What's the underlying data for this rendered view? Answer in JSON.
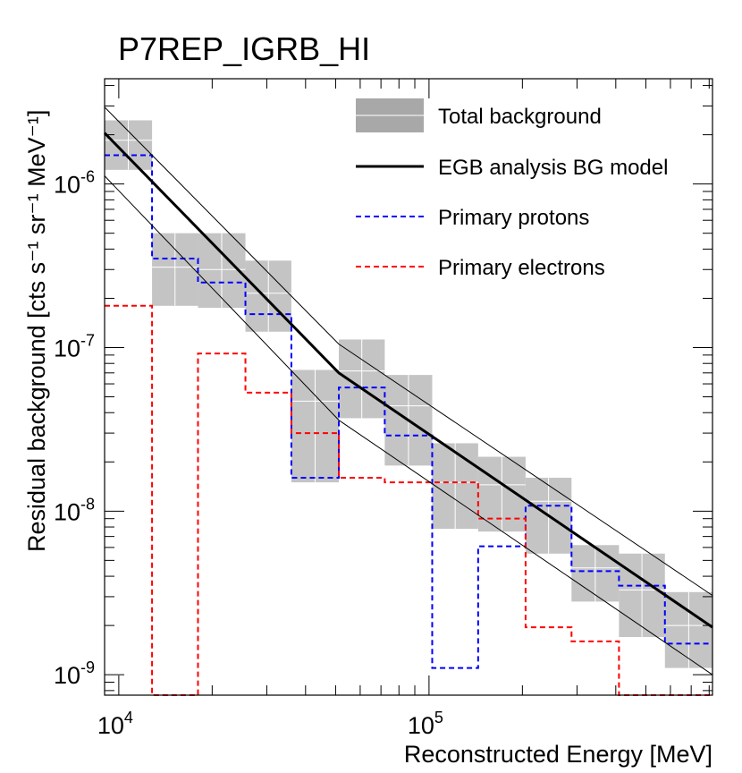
{
  "chart_data": {
    "type": "line",
    "title": "P7REP_IGRB_HI",
    "xlabel": "Reconstructed Energy [MeV]",
    "ylabel": "Residual background [cts s⁻¹ sr⁻¹ MeV⁻¹]",
    "x_scale": "log",
    "y_scale": "log",
    "xlim": [
      9000,
      820000
    ],
    "ylim": [
      7.5e-10,
      4.4e-06
    ],
    "x_tick_labels": [
      {
        "value": 10000,
        "base": "10",
        "exp": "4"
      },
      {
        "value": 100000,
        "base": "10",
        "exp": "5"
      }
    ],
    "y_tick_labels": [
      {
        "value": 1e-06,
        "base": "10",
        "exp": "-6"
      },
      {
        "value": 1e-07,
        "base": "10",
        "exp": "-7"
      },
      {
        "value": 1e-08,
        "base": "10",
        "exp": "-8"
      },
      {
        "value": 1e-09,
        "base": "10",
        "exp": "-9"
      }
    ],
    "legend": {
      "position": "top-right",
      "entries": [
        {
          "label": "Total background",
          "style": "box",
          "color": "#c4c4c4"
        },
        {
          "label": "EGB analysis BG model",
          "style": "solid",
          "color": "#000000"
        },
        {
          "label": "Primary protons",
          "style": "dashed",
          "color": "#0000ff"
        },
        {
          "label": "Primary electrons",
          "style": "dashed",
          "color": "#ff0000"
        }
      ]
    },
    "bin_edges": [
      9000,
      12800,
      18000,
      25600,
      36000,
      51200,
      72000,
      102400,
      144000,
      204800,
      288000,
      409600,
      576000,
      820000
    ],
    "total_background": {
      "name": "Total background",
      "color": "#c4c4c4",
      "values": [
        1.85e-06,
        3.1e-07,
        3e-07,
        2.15e-07,
        4.7e-08,
        7.2e-08,
        4.4e-08,
        1.5e-08,
        1.45e-08,
        1.15e-08,
        4.5e-09,
        3.3e-09,
        2e-09
      ],
      "low": [
        1.22e-06,
        1.8e-07,
        1.75e-07,
        1.25e-07,
        1.5e-08,
        3.7e-08,
        1.9e-08,
        7.8e-09,
        7.5e-09,
        5.5e-09,
        2.8e-09,
        1.7e-09,
        1.1e-09
      ],
      "high": [
        2.45e-06,
        5e-07,
        5e-07,
        3.4e-07,
        7.3e-08,
        1.12e-07,
        6.8e-08,
        2.6e-08,
        2.15e-08,
        1.6e-08,
        6.2e-09,
        5.5e-09,
        3.2e-09
      ]
    },
    "series": [
      {
        "name": "Primary protons",
        "color": "#0000ff",
        "values": [
          1.5e-06,
          3.5e-07,
          2.5e-07,
          1.6e-07,
          1.6e-08,
          5.7e-08,
          2.9e-08,
          1.1e-09,
          6.1e-09,
          1.08e-08,
          4.3e-09,
          3.5e-09,
          1.55e-09
        ]
      },
      {
        "name": "Primary electrons",
        "color": "#ff0000",
        "values": [
          1.8e-07,
          7.5e-10,
          9.2e-08,
          5.3e-08,
          3e-08,
          1.6e-08,
          1.5e-08,
          1.5e-08,
          9e-09,
          1.95e-09,
          1.6e-09,
          7.5e-10,
          7.5e-10
        ]
      }
    ],
    "model": {
      "name": "EGB analysis BG model",
      "x": [
        9000,
        51200,
        820000
      ],
      "y": [
        2.05e-06,
        7e-08,
        1.95e-09
      ],
      "band_upper": [
        2.95e-06,
        1.05e-07,
        3.05e-09
      ],
      "band_lower": [
        1.12e-06,
        3.6e-08,
        1e-09
      ]
    }
  }
}
